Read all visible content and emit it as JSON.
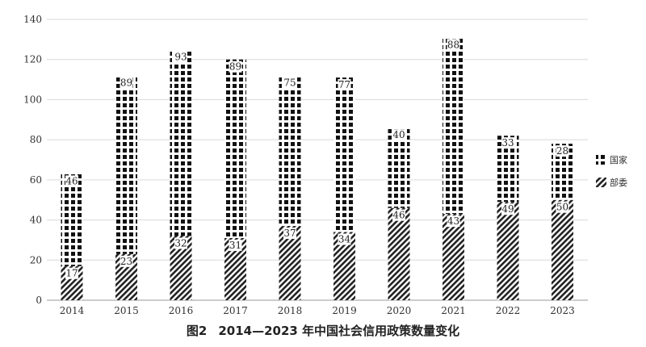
{
  "caption": {
    "figure_number": "图2",
    "title": "2014—2023 年中国社会信用政策数量变化"
  },
  "chart_data": {
    "type": "bar",
    "stacked": true,
    "title": "",
    "xlabel": "",
    "ylabel": "",
    "ylim": [
      0,
      140
    ],
    "yticks": [
      0,
      20,
      40,
      60,
      80,
      100,
      120,
      140
    ],
    "grid": true,
    "legend_position": "right",
    "categories": [
      "2014",
      "2015",
      "2016",
      "2017",
      "2018",
      "2019",
      "2020",
      "2021",
      "2022",
      "2023"
    ],
    "series": [
      {
        "name": "部委",
        "pattern": "diagonal-hatch",
        "color": "#222222",
        "values": [
          17,
          23,
          32,
          31,
          37,
          34,
          46,
          43,
          49,
          50
        ]
      },
      {
        "name": "国家",
        "pattern": "checker",
        "color": "#111111",
        "values": [
          46,
          89,
          93,
          89,
          75,
          77,
          40,
          88,
          33,
          28
        ]
      }
    ]
  }
}
